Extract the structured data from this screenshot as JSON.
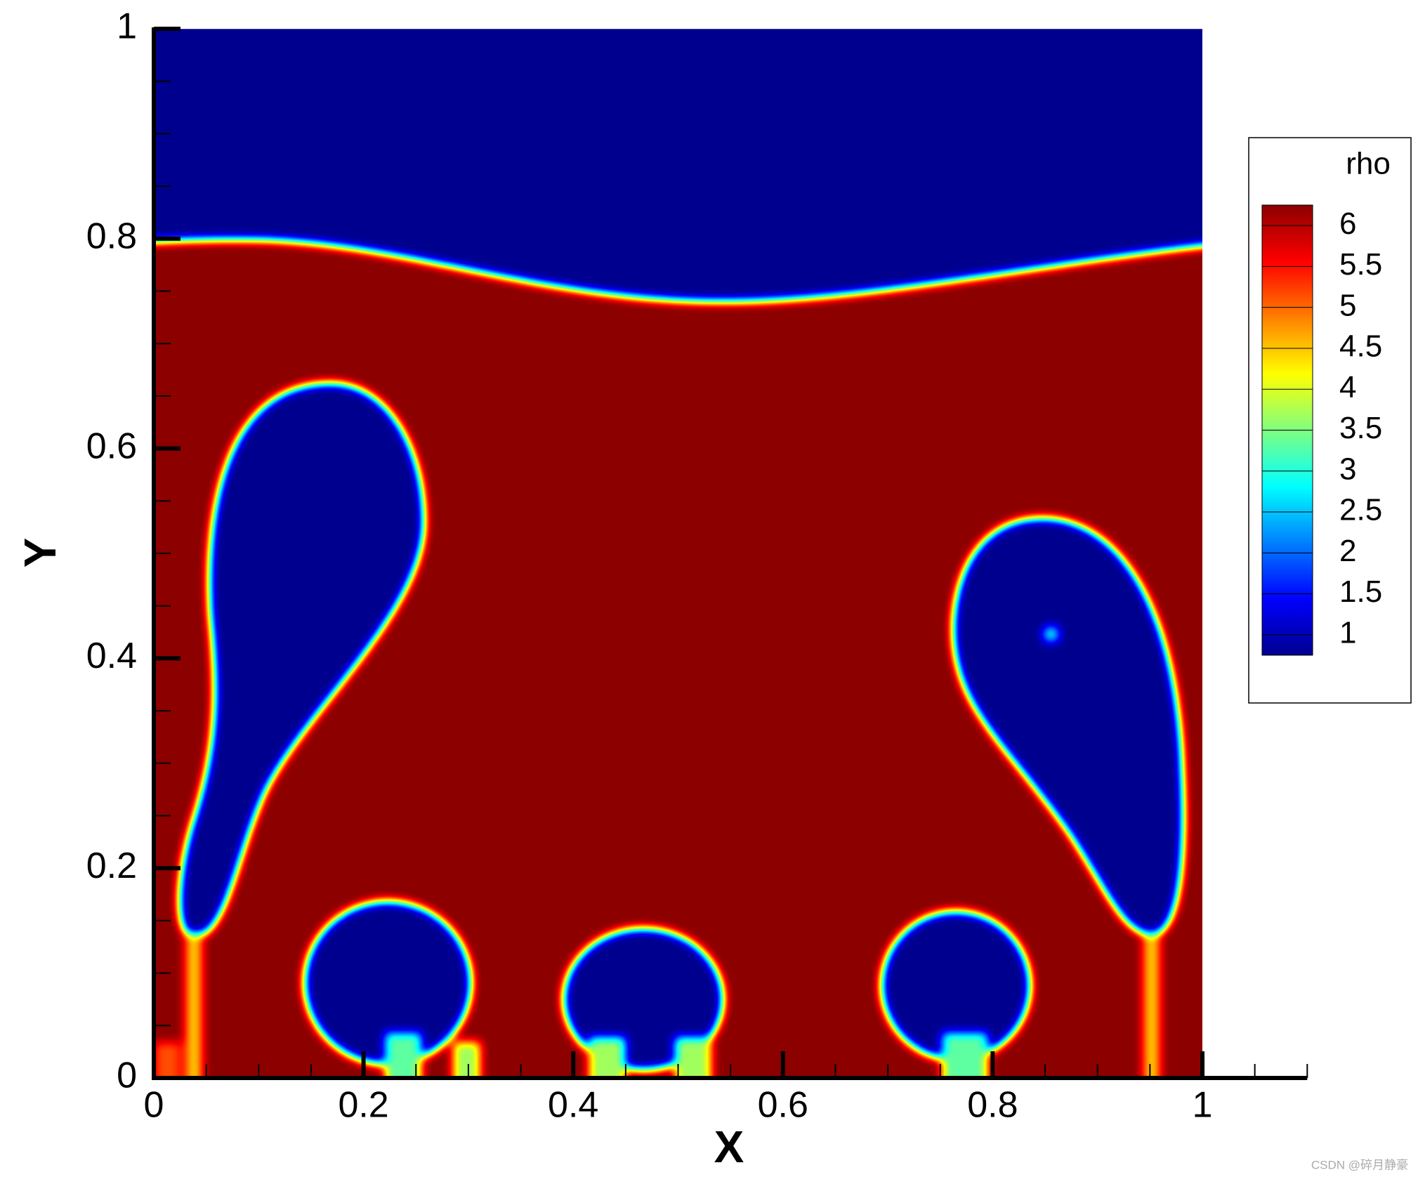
{
  "chart_data": {
    "type": "contour",
    "xlabel": "X",
    "ylabel": "Y",
    "xlim": [
      0,
      1.1
    ],
    "ylim": [
      0,
      1
    ],
    "xticks": [
      0,
      0.2,
      0.4,
      0.6,
      0.8,
      1
    ],
    "yticks": [
      0,
      0.2,
      0.4,
      0.6,
      0.8,
      1
    ],
    "xminorticks": [
      0.05,
      0.1,
      0.15,
      0.25,
      0.3,
      0.35,
      0.45,
      0.5,
      0.55,
      0.65,
      0.7,
      0.75,
      0.85,
      0.9,
      0.95,
      1.05,
      1.1
    ],
    "yminorticks": [
      0.05,
      0.1,
      0.15,
      0.25,
      0.3,
      0.35,
      0.45,
      0.5,
      0.55,
      0.65,
      0.7,
      0.75,
      0.85,
      0.9,
      0.95
    ],
    "colorbar": {
      "title": "rho",
      "lim": [
        0.75,
        6.25
      ],
      "ticks": [
        1,
        1.5,
        2,
        2.5,
        3,
        3.5,
        4,
        4.5,
        5,
        5.5,
        6
      ]
    },
    "annotation": "CSDN @碎月静豪"
  }
}
